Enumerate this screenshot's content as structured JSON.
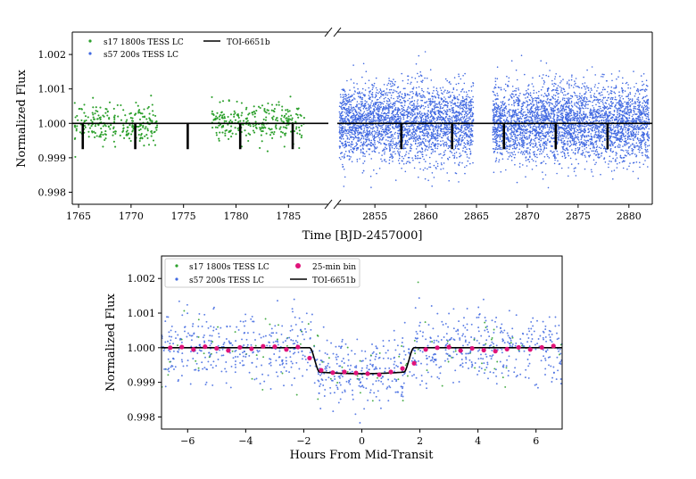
{
  "chart_data": [
    {
      "type": "scatter",
      "panel": "top",
      "title": "",
      "xlabel": "Time [BJD-2457000]",
      "ylabel": "Normalized Flux",
      "broken_x_axis": true,
      "segments": [
        {
          "xlim": [
            1764.4,
            1788.8
          ],
          "xticks": [
            1765,
            1770,
            1775,
            1780,
            1785
          ]
        },
        {
          "xlim": [
            2851.3,
            2882.3
          ],
          "xticks": [
            2855,
            2860,
            2865,
            2870,
            2875,
            2880
          ]
        }
      ],
      "ylim": [
        0.99765,
        1.00265
      ],
      "yticks": [
        "0.998",
        "0.999",
        "1.000",
        "1.001",
        "1.002"
      ],
      "series": [
        {
          "name": "s17 1800s TESS LC",
          "color": "#2ca02c",
          "kind": "points",
          "segment": 0,
          "x_ranges": [
            [
              1764.6,
              1772.5
            ],
            [
              1777.7,
              1786.5
            ]
          ],
          "level": 1.0,
          "scatter_sd": 0.00028
        },
        {
          "name": "s57 200s TESS LC",
          "color": "#4169e1",
          "kind": "points",
          "segment": 1,
          "x_ranges": [
            [
              2851.5,
              2864.7
            ],
            [
              2866.6,
              2882.0
            ]
          ],
          "level": 1.0,
          "scatter_sd": 0.00055
        },
        {
          "name": "TOI-6651b",
          "color": "#000000",
          "kind": "model",
          "transit_depth": 0.00075,
          "transit_times": [
            1765.4,
            1770.4,
            1775.4,
            1780.4,
            1785.4,
            2857.6,
            2862.6,
            2867.7,
            2872.8,
            2877.9
          ]
        }
      ],
      "legend": {
        "position": "top-left",
        "entries": [
          "s17 1800s TESS LC",
          "TOI-6651b",
          "s57 200s TESS LC"
        ]
      }
    },
    {
      "type": "scatter",
      "panel": "bottom",
      "title": "",
      "xlabel": "Hours From Mid-Transit",
      "ylabel": "Normalized Flux",
      "xlim": [
        -6.9,
        6.9
      ],
      "xticks": [
        "−6",
        "−4",
        "−2",
        "0",
        "2",
        "4",
        "6"
      ],
      "xtick_values": [
        -6,
        -4,
        -2,
        0,
        2,
        4,
        6
      ],
      "ylim": [
        0.99765,
        1.00265
      ],
      "yticks": [
        "0.998",
        "0.999",
        "1.000",
        "1.001",
        "1.002"
      ],
      "series": [
        {
          "name": "s17 1800s TESS LC",
          "color": "#2ca02c",
          "kind": "points"
        },
        {
          "name": "s57 200s TESS LC",
          "color": "#4169e1",
          "kind": "points",
          "scatter_sd": 0.0005
        },
        {
          "name": "25-min bin",
          "color": "#e0137a",
          "kind": "binned",
          "x": [
            -6.6,
            -6.2,
            -5.8,
            -5.4,
            -5.0,
            -4.6,
            -4.2,
            -3.8,
            -3.4,
            -3.0,
            -2.6,
            -2.2,
            -1.8,
            -1.4,
            -1.0,
            -0.6,
            -0.2,
            0.2,
            0.6,
            1.0,
            1.4,
            1.8,
            2.2,
            2.6,
            3.0,
            3.4,
            3.8,
            4.2,
            4.6,
            5.0,
            5.4,
            5.8,
            6.2,
            6.6
          ],
          "y": [
            1.0,
            1.00002,
            0.99995,
            1.00003,
            0.99998,
            0.99992,
            1.00001,
            0.99997,
            1.00004,
            1.00003,
            0.99995,
            1.00002,
            0.9997,
            0.99935,
            0.99928,
            0.9993,
            0.99927,
            0.99925,
            0.99922,
            0.9993,
            0.9994,
            0.99955,
            0.99995,
            1.0,
            1.00002,
            0.99992,
            0.99998,
            0.99993,
            0.9999,
            0.99996,
            1.00001,
            0.99995,
            1.00001,
            1.00005
          ]
        },
        {
          "name": "TOI-6651b",
          "color": "#000000",
          "kind": "model",
          "transit_duration_hours": 3.6,
          "transit_depth": 0.00075
        }
      ],
      "legend": {
        "position": "top-left",
        "entries": [
          "s17 1800s TESS LC",
          "25-min bin",
          "s57 200s TESS LC",
          "TOI-6651b"
        ]
      }
    }
  ]
}
